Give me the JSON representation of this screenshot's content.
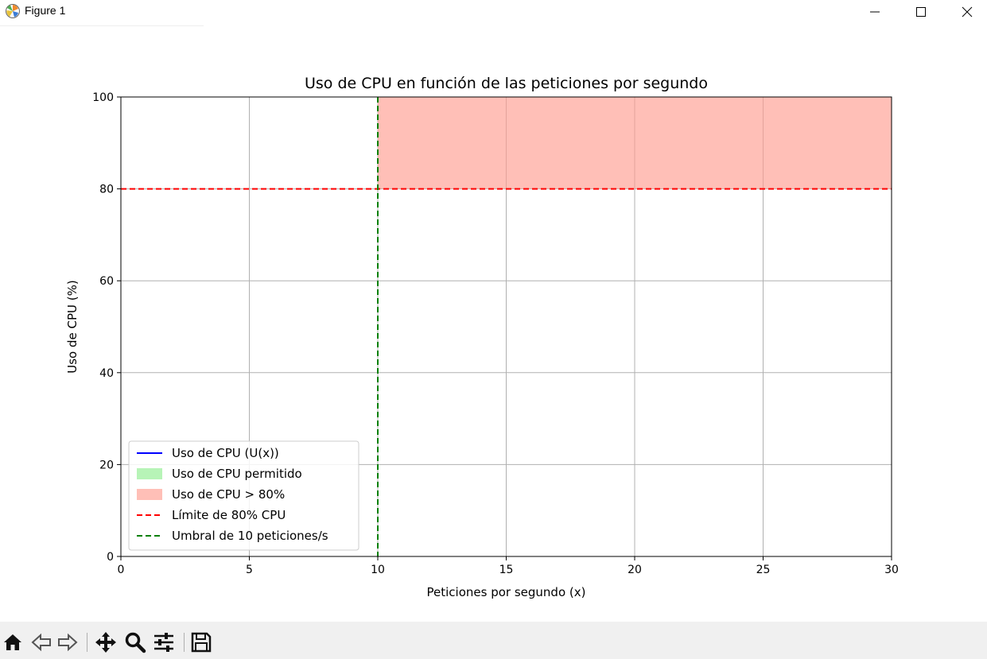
{
  "window": {
    "title": "Figure 1",
    "icons": {
      "app": "matplotlib-app-icon",
      "minimize": "minimize-icon",
      "maximize": "maximize-icon",
      "close": "close-icon"
    }
  },
  "toolbar": {
    "buttons": [
      {
        "name": "home-icon",
        "action": "home"
      },
      {
        "name": "back-arrow-icon",
        "action": "back"
      },
      {
        "name": "forward-arrow-icon",
        "action": "forward"
      },
      {
        "name": "pan-move-icon",
        "action": "pan"
      },
      {
        "name": "zoom-magnifier-icon",
        "action": "zoom"
      },
      {
        "name": "configure-subplots-icon",
        "action": "configure"
      },
      {
        "name": "save-disk-icon",
        "action": "save"
      }
    ]
  },
  "chart_data": {
    "type": "line",
    "title": "Uso de CPU en función de las peticiones por segundo",
    "xlabel": "Peticiones por segundo (x)",
    "ylabel": "Uso de CPU (%)",
    "xlim": [
      0,
      30
    ],
    "ylim": [
      0,
      100
    ],
    "xticks": [
      "0",
      "5",
      "10",
      "15",
      "20",
      "25",
      "30"
    ],
    "yticks": [
      "0",
      "20",
      "40",
      "60",
      "80",
      "100"
    ],
    "grid": true,
    "legend_position": "lower-left",
    "series": [
      {
        "name": "Uso de CPU (U(x))",
        "kind": "line",
        "color": "#0000ff",
        "x": [],
        "y": []
      },
      {
        "name": "Uso de CPU permitido",
        "kind": "fill",
        "color": "#90ee90",
        "regions": []
      },
      {
        "name": "Uso de CPU > 80%",
        "kind": "fill",
        "color": "#ff9c90",
        "regions": [
          {
            "x": [
              10,
              30
            ],
            "y": [
              80,
              100
            ]
          }
        ]
      },
      {
        "name": "Límite de 80% CPU",
        "kind": "hline",
        "style": "dashed",
        "color": "#ff0000",
        "y": 80
      },
      {
        "name": "Umbral de 10 peticiones/s",
        "kind": "vline",
        "style": "dashed",
        "color": "#008000",
        "x": 10
      }
    ]
  }
}
